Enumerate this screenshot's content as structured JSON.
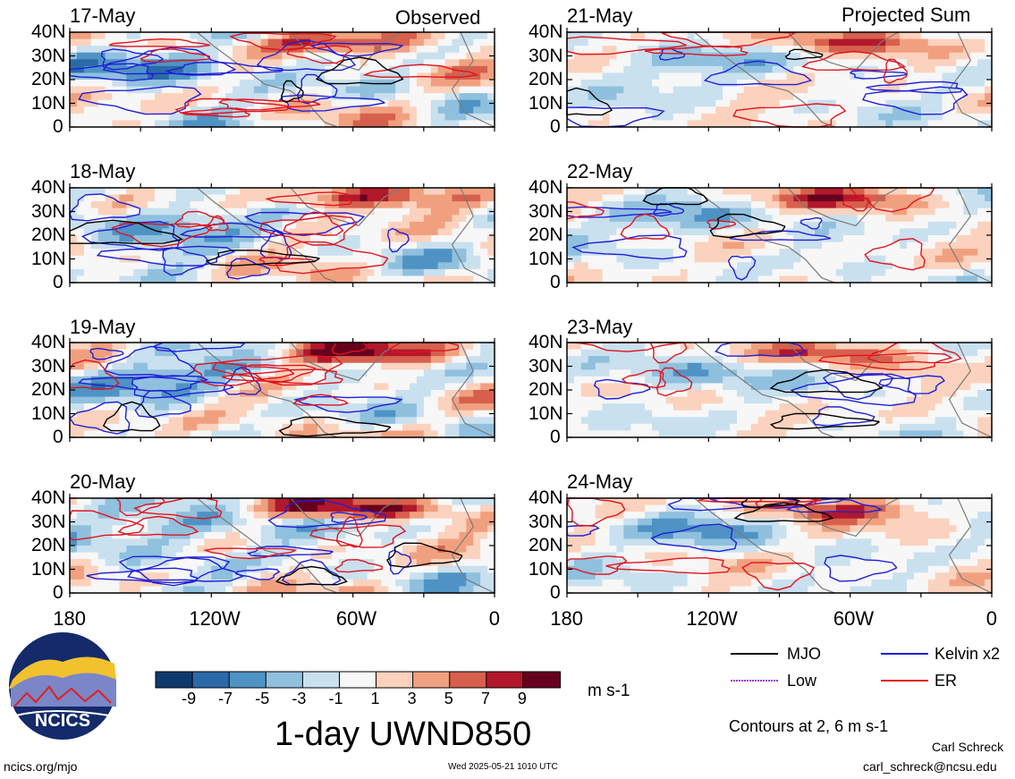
{
  "chart_data": {
    "type": "heatmap",
    "title": "1-day UWND850",
    "units": "m s-1",
    "columns": [
      {
        "label": "Observed",
        "dates": [
          "17-May",
          "18-May",
          "19-May",
          "20-May"
        ]
      },
      {
        "label": "Projected Sum",
        "dates": [
          "21-May",
          "22-May",
          "23-May",
          "24-May"
        ]
      }
    ],
    "x_axis": {
      "ticks": [
        "180",
        "120W",
        "60W",
        "0"
      ],
      "range_lon": [
        -180,
        0
      ]
    },
    "y_axis": {
      "ticks": [
        "40N",
        "30N",
        "20N",
        "10N",
        "0"
      ],
      "range_lat": [
        0,
        40
      ]
    },
    "colorbar": {
      "labels": [
        "-9",
        "-7",
        "-5",
        "-3",
        "-1",
        "1",
        "3",
        "5",
        "7",
        "9"
      ],
      "colors": [
        "#0d3a6b",
        "#2b6aa8",
        "#4f93c5",
        "#8fc0de",
        "#c9e0ef",
        "#f7f7f7",
        "#fbd2bd",
        "#f1a07f",
        "#d6604d",
        "#b2182b",
        "#67001f"
      ]
    },
    "contours": {
      "note": "Contours at 2, 6 m s-1",
      "series": [
        {
          "name": "MJO",
          "color": "#000000"
        },
        {
          "name": "Kelvin x2",
          "color": "#1f1fd6"
        },
        {
          "name": "Low",
          "color": "#9b30d9"
        },
        {
          "name": "ER",
          "color": "#e0141e"
        }
      ]
    }
  },
  "footer": {
    "left": "ncics.org/mjo",
    "center": "Wed 2025-05-21 1010 UTC",
    "author": "Carl Schreck",
    "email": "carl_schreck@ncsu.edu",
    "logo_text": "NCICS"
  }
}
